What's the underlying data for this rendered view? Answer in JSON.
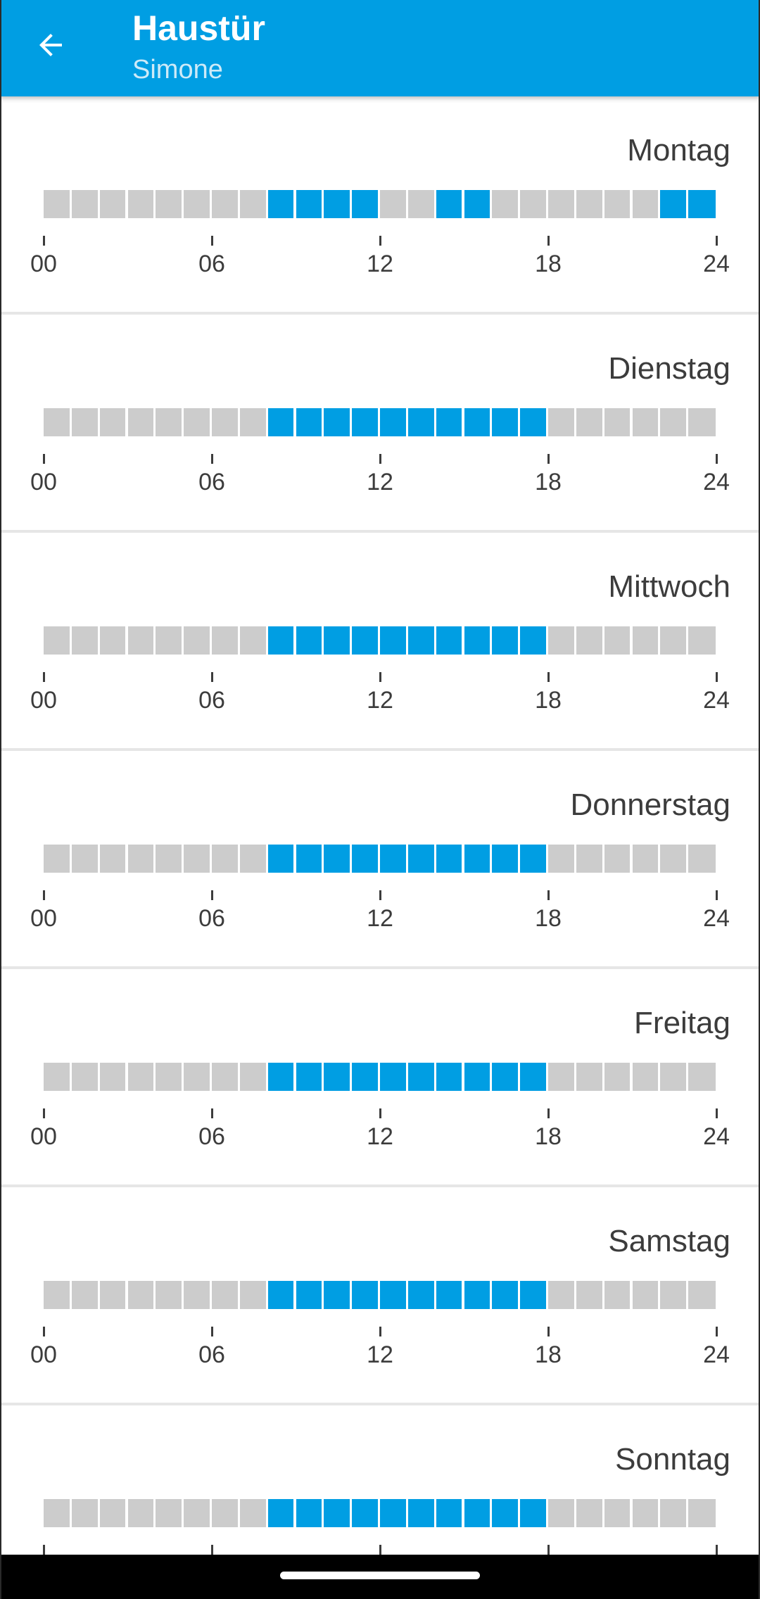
{
  "header": {
    "title": "Haustür",
    "subtitle": "Simone",
    "back_icon": "arrow-left-icon",
    "background_color": "#009ee3"
  },
  "schedule": {
    "active_color": "#009ee3",
    "inactive_color": "#cccccc",
    "slots_per_day": 24,
    "axis_ticks": [
      "00",
      "06",
      "12",
      "18",
      "24"
    ],
    "days": [
      {
        "name": "Montag",
        "active_hours": [
          8,
          9,
          10,
          11,
          14,
          15,
          22,
          23
        ]
      },
      {
        "name": "Dienstag",
        "active_hours": [
          8,
          9,
          10,
          11,
          12,
          13,
          14,
          15,
          16,
          17
        ]
      },
      {
        "name": "Mittwoch",
        "active_hours": [
          8,
          9,
          10,
          11,
          12,
          13,
          14,
          15,
          16,
          17
        ]
      },
      {
        "name": "Donnerstag",
        "active_hours": [
          8,
          9,
          10,
          11,
          12,
          13,
          14,
          15,
          16,
          17
        ]
      },
      {
        "name": "Freitag",
        "active_hours": [
          8,
          9,
          10,
          11,
          12,
          13,
          14,
          15,
          16,
          17
        ]
      },
      {
        "name": "Samstag",
        "active_hours": [
          8,
          9,
          10,
          11,
          12,
          13,
          14,
          15,
          16,
          17
        ]
      },
      {
        "name": "Sonntag",
        "active_hours": [
          8,
          9,
          10,
          11,
          12,
          13,
          14,
          15,
          16,
          17
        ]
      }
    ]
  }
}
